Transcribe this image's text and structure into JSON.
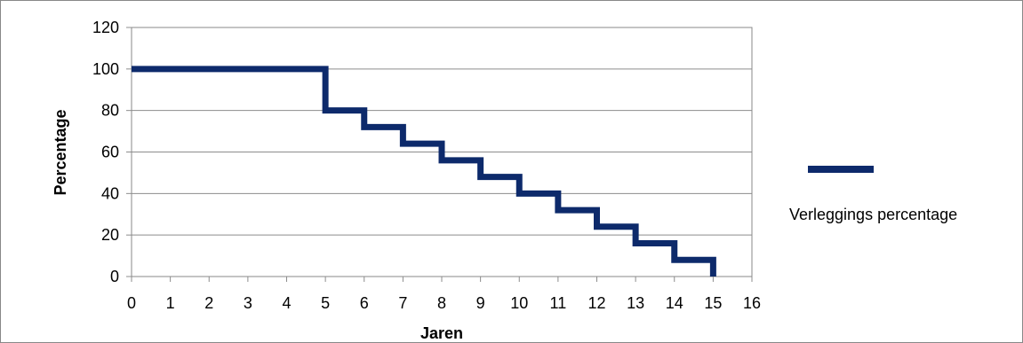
{
  "chart_data": {
    "type": "line",
    "step": true,
    "title": "",
    "xlabel": "Jaren",
    "ylabel": "Percentage",
    "xlim": [
      0,
      16
    ],
    "ylim": [
      0,
      120
    ],
    "x_ticks": [
      0,
      1,
      2,
      3,
      4,
      5,
      6,
      7,
      8,
      9,
      10,
      11,
      12,
      13,
      14,
      15,
      16
    ],
    "y_ticks": [
      0,
      20,
      40,
      60,
      80,
      100,
      120
    ],
    "grid": "horizontal",
    "legend_position": "right",
    "series": [
      {
        "name": "Verleggings percentage",
        "color": "#0d2a6b",
        "x": [
          0,
          1,
          2,
          3,
          4,
          5,
          6,
          7,
          8,
          9,
          10,
          11,
          12,
          13,
          14,
          15
        ],
        "y": [
          100,
          100,
          100,
          100,
          100,
          80,
          72,
          64,
          56,
          48,
          40,
          32,
          24,
          16,
          8,
          0
        ]
      }
    ]
  }
}
